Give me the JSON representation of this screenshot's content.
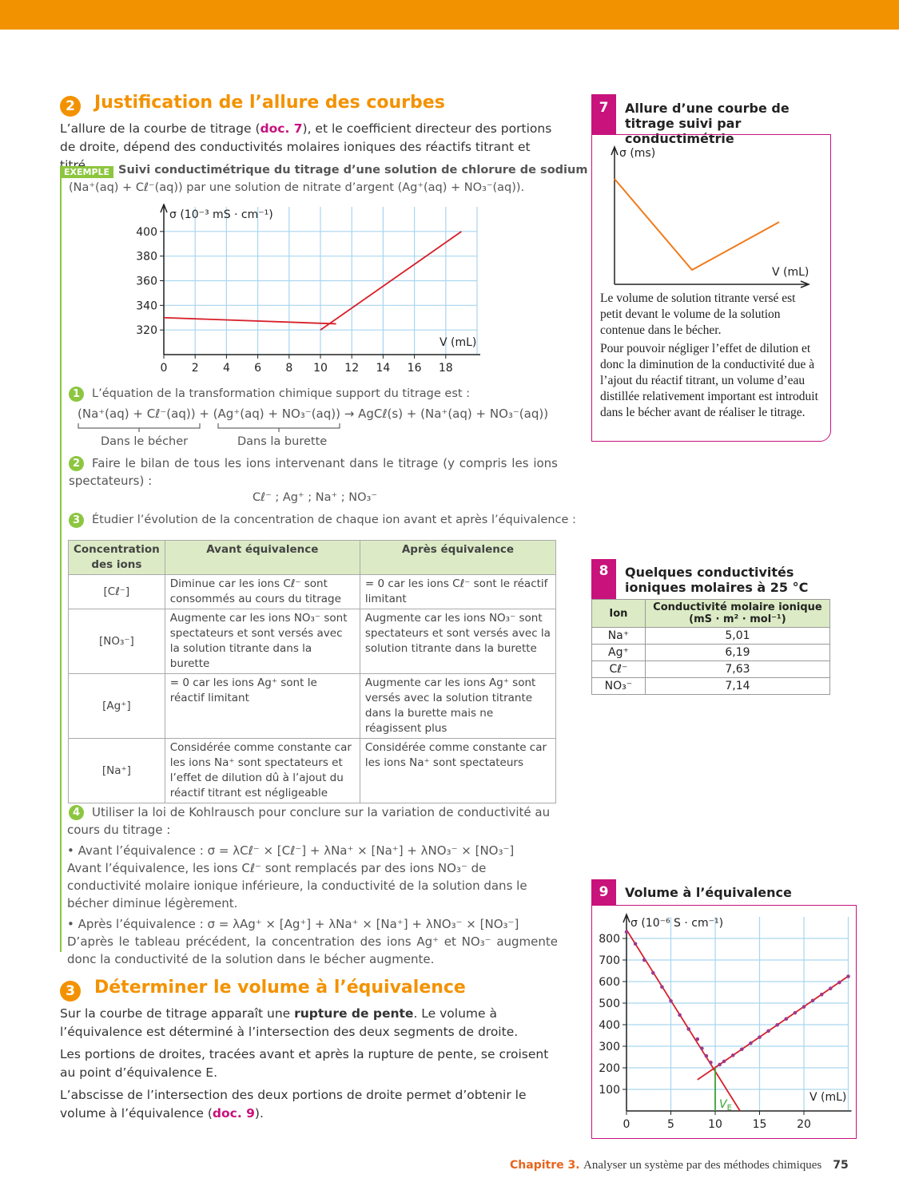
{
  "section2": {
    "number": "2",
    "title": "Justification de l’allure des courbes",
    "intro_before": "L’allure de la courbe de titrage (",
    "intro_ref": "doc. 7",
    "intro_after": "), et le coefficient directeur des portions de droite, dépend des conductivités molaires ioniques des réactifs titrant et titré."
  },
  "example": {
    "tag": "EXEMPLE",
    "title": "Suivi conductimétrique du titrage d’une solution de chlorure de sodium",
    "subtitle": "(Na⁺(aq) + Cℓ⁻(aq)) par une solution de nitrate d’argent (Ag⁺(aq) + NO₃⁻(aq))."
  },
  "chart_data": [
    {
      "type": "line",
      "y_label": "σ (10⁻³ mS · cm⁻¹)",
      "x_label": "V (mL)",
      "xlim": [
        0,
        20
      ],
      "xticks": [
        0,
        2,
        4,
        6,
        8,
        10,
        12,
        14,
        16,
        18
      ],
      "ylim": [
        300,
        420
      ],
      "yticks": [
        320,
        340,
        360,
        380,
        400
      ],
      "grid": true,
      "series": [
        {
          "color": "#d7202a",
          "x": [
            0,
            11
          ],
          "values": [
            330,
            325
          ]
        },
        {
          "color": "#d7202a",
          "x": [
            10,
            19
          ],
          "values": [
            320,
            400
          ]
        }
      ]
    },
    {
      "type": "scatter",
      "y_label": "σ (10⁻⁶ S · cm⁻¹)",
      "x_label": "V (mL)",
      "xlim": [
        0,
        25
      ],
      "xticks": [
        0,
        5,
        10,
        15,
        20
      ],
      "ylim": [
        0,
        900
      ],
      "yticks": [
        100,
        200,
        300,
        400,
        500,
        600,
        700,
        800
      ],
      "grid": true,
      "series": [
        {
          "color": "#9b3b8f",
          "x": [
            0,
            1,
            2,
            3,
            4,
            5,
            6,
            7,
            8,
            8.5,
            9,
            9.5,
            10.5,
            11,
            12,
            13,
            14,
            15,
            16,
            17,
            18,
            19,
            20,
            21,
            22,
            23,
            24,
            25
          ],
          "values": [
            830,
            775,
            700,
            640,
            575,
            510,
            445,
            380,
            333,
            290,
            255,
            225,
            215,
            230,
            258,
            286,
            314,
            342,
            371,
            399,
            427,
            455,
            483,
            512,
            540,
            568,
            596,
            624
          ]
        }
      ],
      "fit_lines": [
        {
          "color": "#d7202a",
          "x": [
            0,
            12.8
          ],
          "values": [
            840,
            0
          ]
        },
        {
          "color": "#d7202a",
          "x": [
            8,
            25
          ],
          "values": [
            145,
            625
          ]
        }
      ],
      "equivalence": {
        "x": 10,
        "y": 200,
        "label": "V",
        "label_sub": "E",
        "color": "#3aa335"
      }
    }
  ],
  "questions": {
    "q1": {
      "number": "1",
      "text": "L’équation de la transformation chimique support du titrage est :",
      "equation": "(Na⁺(aq) + Cℓ⁻(aq)) + (Ag⁺(aq) + NO₃⁻(aq)) → AgCℓ(s) + (Na⁺(aq) + NO₃⁻(aq))",
      "brace1": "Dans le bécher",
      "brace2": "Dans la burette"
    },
    "q2": {
      "number": "2",
      "text": "Faire le bilan de tous les ions intervenant dans le titrage (y compris les ions spectateurs) :",
      "ions": "Cℓ⁻ ; Ag⁺ ; Na⁺ ; NO₃⁻"
    },
    "q3": {
      "number": "3",
      "text": "Étudier l’évolution de la concentration de chaque ion avant et après l’équivalence :"
    },
    "q4": {
      "number": "4",
      "text": "Utiliser la loi de Kohlrausch pour conclure sur la variation de conductivité au cours du titrage :",
      "before_label": "• Avant l’équivalence : ",
      "before_formula": "σ = λCℓ⁻ × [Cℓ⁻] + λNa⁺ × [Na⁺] + λNO₃⁻ × [NO₃⁻]",
      "before_text": "Avant l’équivalence, les ions Cℓ⁻ sont remplacés par des ions NO₃⁻ de conductivité molaire ionique inférieure, la conductivité de la solution dans le bécher diminue légèrement.",
      "after_label": "• Après l’équivalence : ",
      "after_formula": "σ = λAg⁺ × [Ag⁺] + λNa⁺ × [Na⁺] + λNO₃⁻ × [NO₃⁻]",
      "after_text": "D’après le tableau précédent, la concentration des ions Ag⁺ et NO₃⁻ augmente donc la conductivité de la solution dans le bécher augmente."
    }
  },
  "table": {
    "header": [
      "Concentration des ions",
      "Avant équivalence",
      "Après équivalence"
    ],
    "rows": [
      [
        "[Cℓ⁻]",
        "Diminue car les ions Cℓ⁻ sont consommés au cours du titrage",
        "= 0 car les ions Cℓ⁻ sont le réactif limitant"
      ],
      [
        "[NO₃⁻]",
        "Augmente car les ions NO₃⁻ sont spectateurs et sont versés avec la solution titrante dans la burette",
        "Augmente car les ions NO₃⁻ sont spectateurs et sont versés avec la solution titrante dans la burette"
      ],
      [
        "[Ag⁺]",
        "= 0 car les ions Ag⁺ sont le réactif limitant",
        "Augmente car les ions Ag⁺ sont versés avec la solution titrante dans la burette mais ne réagissent plus"
      ],
      [
        "[Na⁺]",
        "Considérée comme constante car les ions Na⁺ sont spectateurs et l’effet de dilution dû à l’ajout du réactif titrant est négligeable",
        "Considérée comme constante car les ions Na⁺ sont spectateurs"
      ]
    ]
  },
  "section3": {
    "number": "3",
    "title": "Déterminer le volume à l’équivalence",
    "p1_before": "Sur la courbe de titrage apparaît une ",
    "p1_bold": "rupture de pente",
    "p1_after": ". Le volume à l’équivalence est déterminé à l’intersection des deux segments de droite.",
    "p2": "Les portions de droites, tracées avant et après la rupture de pente, se croisent au point d’équivalence E.",
    "p3_before": "L’abscisse de l’intersection des deux portions de droite permet d’obtenir le volume à l’équivalence (",
    "p3_ref": "doc. 9",
    "p3_after": ")."
  },
  "doc7": {
    "number": "7",
    "title": "Allure d’une courbe de titrage suivi par conductimétrie",
    "y_label": "σ (ms)",
    "x_label": "V (mL)",
    "p1": "Le volume de solution titrante versé est petit devant le volume de la solution contenue dans le bécher.",
    "p2": "Pour pouvoir négliger l’effet de dilution et donc la diminution de la conductivité due à l’ajout du réactif titrant, un volume d’eau distillée relativement important est introduit dans le bécher avant de réaliser le titrage."
  },
  "doc8": {
    "number": "8",
    "title": "Quelques conductivités ioniques molaires à 25 °C",
    "header": [
      "Ion",
      "Conductivité molaire ionique (mS · m² · mol⁻¹)"
    ],
    "rows": [
      [
        "Na⁺",
        "5,01"
      ],
      [
        "Ag⁺",
        "6,19"
      ],
      [
        "Cℓ⁻",
        "7,63"
      ],
      [
        "NO₃⁻",
        "7,14"
      ]
    ]
  },
  "doc9": {
    "number": "9",
    "title": "Volume à l’équivalence"
  },
  "footer": {
    "chapter": "Chapitre 3.",
    "title": "Analyser un système par des méthodes chimiques",
    "page": "75"
  }
}
